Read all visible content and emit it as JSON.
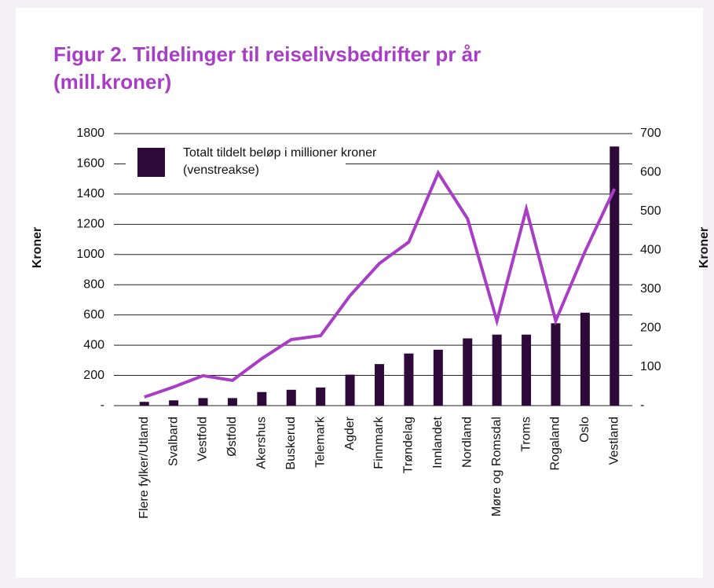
{
  "chart_data": {
    "type": "bar_line",
    "title": "Figur 2. Tildelinger til reiselivsbedrifter pr år (mill.kroner)",
    "ylabel": "Kroner",
    "y2label": "Kroner",
    "categories": [
      "Flere fylker/Utland",
      "Svalbard",
      "Vestfold",
      "Østfold",
      "Akershus",
      "Buskerud",
      "Telemark",
      "Agder",
      "Finnmark",
      "Trøndelag",
      "Innlandet",
      "Nordland",
      "Møre og Romsdal",
      "Troms",
      "Rogaland",
      "Oslo",
      "Vestland"
    ],
    "series": [
      {
        "name": "Totalt tildelt beløp i millioner kroner (venstreakse)",
        "type": "bar",
        "color": "#2d0a3a",
        "values": [
          25,
          35,
          50,
          50,
          90,
          105,
          120,
          205,
          275,
          345,
          370,
          445,
          470,
          470,
          545,
          615,
          1715
        ]
      },
      {
        "type": "line",
        "axis": "y2",
        "color": "#a83ec4",
        "values": [
          22,
          48,
          77,
          65,
          121,
          170,
          180,
          283,
          366,
          421,
          599,
          481,
          218,
          506,
          218,
          397,
          558
        ]
      }
    ],
    "ylim": [
      0,
      1800
    ],
    "yticks": [
      {
        "value": 0,
        "label": "-"
      },
      200,
      400,
      600,
      800,
      1000,
      1200,
      1400,
      1600,
      1800
    ],
    "y2lim": [
      0,
      700
    ],
    "y2ticks": [
      {
        "value": 0,
        "label": "-"
      },
      100,
      200,
      300,
      400,
      500,
      600,
      700
    ],
    "grid": true,
    "legend": "upper left"
  }
}
